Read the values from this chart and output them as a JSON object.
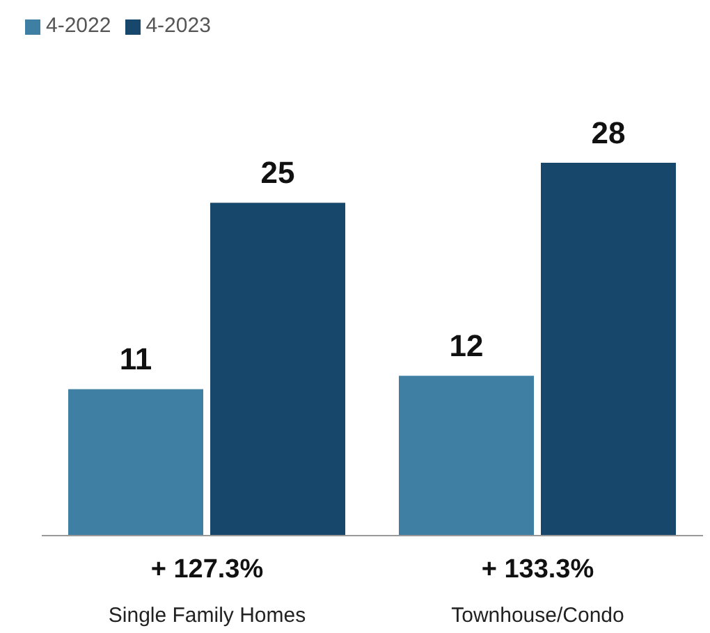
{
  "chart_data": {
    "type": "bar",
    "categories": [
      "Single Family Homes",
      "Townhouse/Condo"
    ],
    "series": [
      {
        "name": "4-2022",
        "color": "#3e7fa3",
        "values": [
          11,
          12
        ]
      },
      {
        "name": "4-2023",
        "color": "#17476a",
        "values": [
          25,
          28
        ]
      }
    ],
    "data_labels": true,
    "legend": "top left",
    "annotations": [
      "+ 127.3%",
      "+ 133.3%"
    ]
  }
}
